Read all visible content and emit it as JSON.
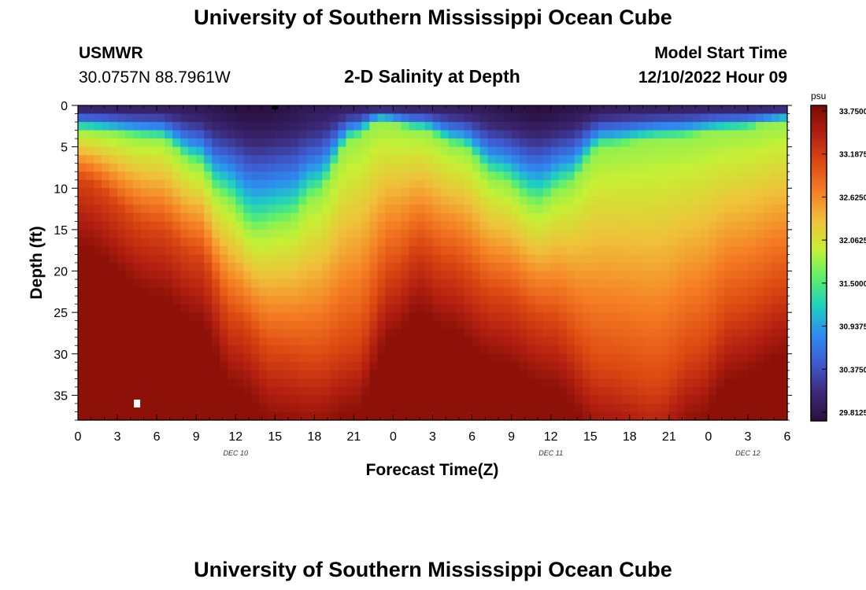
{
  "header": {
    "title": "University of Southern Mississippi Ocean Cube",
    "station_name": "USMWR",
    "station_coords": "30.0757N  88.7961W",
    "plot_title": "2-D Salinity at Depth",
    "model_label": "Model Start Time",
    "model_time": "12/10/2022 Hour 09"
  },
  "footer": {
    "title": "University of Southern Mississippi Ocean Cube"
  },
  "chart_data": {
    "type": "heatmap",
    "title": "2-D Salinity at Depth",
    "xlabel": "Forecast Time(Z)",
    "ylabel": "Depth (ft)",
    "x_hours_range": [
      0,
      54
    ],
    "ylim": [
      0,
      38
    ],
    "x_ticks": [
      "0",
      "3",
      "6",
      "9",
      "12",
      "15",
      "18",
      "21",
      "0",
      "3",
      "6",
      "9",
      "12",
      "15",
      "18",
      "21",
      "0",
      "3",
      "6"
    ],
    "y_ticks": [
      "0",
      "5",
      "10",
      "15",
      "20",
      "25",
      "30",
      "35"
    ],
    "date_labels": [
      "DEC 10",
      "DEC 11",
      "DEC 12"
    ],
    "colorbar": {
      "unit": "psu",
      "range": [
        29.8125,
        33.75
      ],
      "tick_labels": [
        "33.7500",
        "33.1875",
        "32.6250",
        "32.0625",
        "31.5000",
        "30.9375",
        "30.3750",
        "29.8125"
      ]
    },
    "colormap": [
      "#2a1040",
      "#3c2a7a",
      "#3e5bd0",
      "#2e8cf0",
      "#1fcfc0",
      "#5ef06a",
      "#c6f034",
      "#f0c03a",
      "#f57e24",
      "#dd4a12",
      "#b32010",
      "#7a0a05"
    ],
    "markers": [
      {
        "hour": 4.5,
        "depth": 36,
        "color": "#ffffff"
      },
      {
        "hour": 15,
        "depth": 0,
        "color": "#000000"
      }
    ],
    "profiles": {
      "description": "Salinity structure: fresh surface layer thickening around hour 13-14 and 33-34, saline bottom layer",
      "fresh_layer_depth_ft": [
        {
          "hour": 0,
          "depth": 3
        },
        {
          "hour": 6,
          "depth": 4
        },
        {
          "hour": 9,
          "depth": 7
        },
        {
          "hour": 11,
          "depth": 11
        },
        {
          "hour": 13.5,
          "depth": 15
        },
        {
          "hour": 16,
          "depth": 14
        },
        {
          "hour": 18,
          "depth": 11
        },
        {
          "hour": 21,
          "depth": 4
        },
        {
          "hour": 23,
          "depth": 2
        },
        {
          "hour": 26,
          "depth": 3
        },
        {
          "hour": 29,
          "depth": 5
        },
        {
          "hour": 32,
          "depth": 9
        },
        {
          "hour": 35,
          "depth": 12
        },
        {
          "hour": 37,
          "depth": 10
        },
        {
          "hour": 40,
          "depth": 5
        },
        {
          "hour": 45,
          "depth": 4
        },
        {
          "hour": 50,
          "depth": 3
        },
        {
          "hour": 54,
          "depth": 2
        }
      ],
      "saline_layer_depth_ft": [
        {
          "hour": 0,
          "depth": 9
        },
        {
          "hour": 6,
          "depth": 15
        },
        {
          "hour": 9,
          "depth": 18
        },
        {
          "hour": 12,
          "depth": 26
        },
        {
          "hour": 15,
          "depth": 30
        },
        {
          "hour": 18,
          "depth": 31
        },
        {
          "hour": 21,
          "depth": 29
        },
        {
          "hour": 24,
          "depth": 20
        },
        {
          "hour": 26,
          "depth": 17
        },
        {
          "hour": 28,
          "depth": 19
        },
        {
          "hour": 32,
          "depth": 23
        },
        {
          "hour": 36,
          "depth": 26
        },
        {
          "hour": 40,
          "depth": 32
        },
        {
          "hour": 44,
          "depth": 34
        },
        {
          "hour": 47,
          "depth": 30
        },
        {
          "hour": 50,
          "depth": 25
        },
        {
          "hour": 54,
          "depth": 22
        }
      ]
    }
  }
}
